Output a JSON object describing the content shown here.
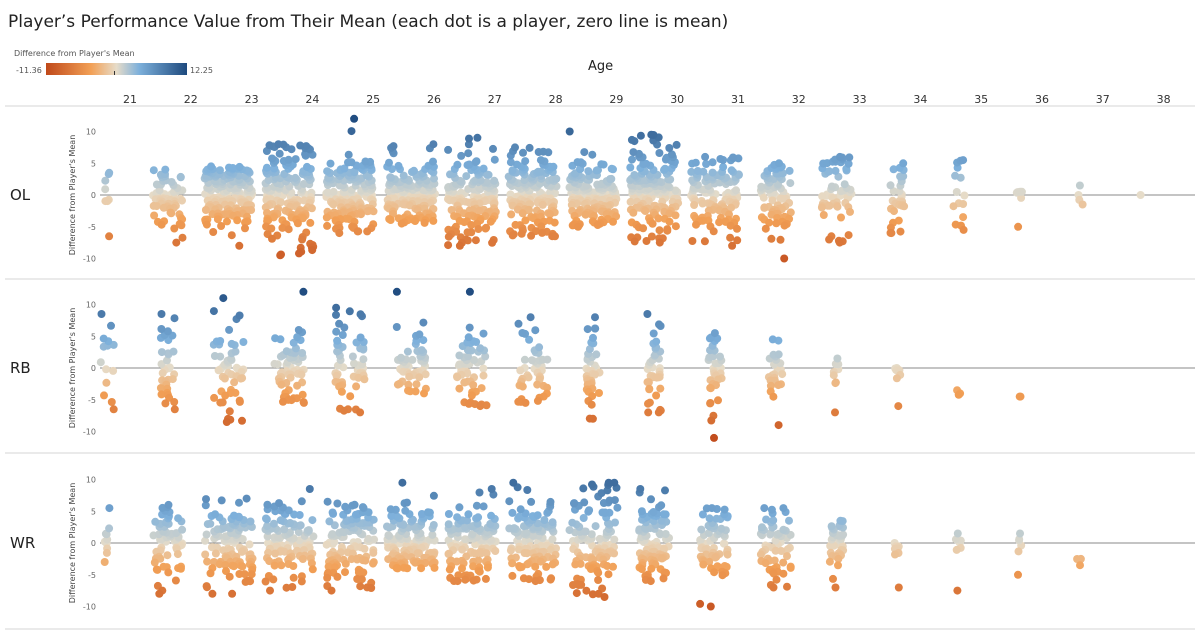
{
  "chart_data": {
    "type": "scatter",
    "title": "Player’s Performance Value from Their Mean (each dot is a player, zero line is mean)",
    "xlabel": "Age",
    "ylabel": "Difference from Player's Mean",
    "x_categories": [
      "21",
      "22",
      "23",
      "24",
      "25",
      "26",
      "27",
      "28",
      "29",
      "30",
      "31",
      "32",
      "33",
      "34",
      "35",
      "36",
      "37",
      "38"
    ],
    "y_ticks": [
      10,
      5,
      0,
      -5,
      -10
    ],
    "ylim": [
      -11.36,
      12.25
    ],
    "color_legend": {
      "title": "Difference from Player's Mean",
      "min_label": "-11.36",
      "max_label": "12.25",
      "min_color": "#c0491a",
      "mid_color": "#e6dcc9",
      "max_color": "#1e4a7e"
    },
    "grid": false,
    "zero_line": true,
    "panels": [
      {
        "position": "OL",
        "groups": [
          {
            "age": "21",
            "n": 8,
            "min": -6.5,
            "max": 3.5
          },
          {
            "age": "22",
            "n": 70,
            "min": -7.5,
            "max": 4
          },
          {
            "age": "23",
            "n": 180,
            "min": -8,
            "max": 4.5
          },
          {
            "age": "24",
            "n": 180,
            "min": -9.5,
            "max": 8
          },
          {
            "age": "25",
            "n": 170,
            "min": -6,
            "max": 12
          },
          {
            "age": "26",
            "n": 170,
            "min": -4.5,
            "max": 8
          },
          {
            "age": "27",
            "n": 170,
            "min": -8,
            "max": 9
          },
          {
            "age": "28",
            "n": 170,
            "min": -6.5,
            "max": 7.5
          },
          {
            "age": "29",
            "n": 170,
            "min": -5,
            "max": 10
          },
          {
            "age": "30",
            "n": 170,
            "min": -7.5,
            "max": 9.5
          },
          {
            "age": "31",
            "n": 130,
            "min": -8,
            "max": 6
          },
          {
            "age": "32",
            "n": 80,
            "min": -10,
            "max": 5
          },
          {
            "age": "33",
            "n": 60,
            "min": -7.5,
            "max": 6
          },
          {
            "age": "34",
            "n": 30,
            "min": -6,
            "max": 5
          },
          {
            "age": "35",
            "n": 15,
            "min": -5.5,
            "max": 5.5
          },
          {
            "age": "36",
            "n": 6,
            "min": -5,
            "max": 0.5
          },
          {
            "age": "37",
            "n": 4,
            "min": -1.5,
            "max": 1.5
          },
          {
            "age": "38",
            "n": 1,
            "min": 0,
            "max": 0
          }
        ]
      },
      {
        "position": "RB",
        "groups": [
          {
            "age": "21",
            "n": 14,
            "min": -6.5,
            "max": 8.5
          },
          {
            "age": "22",
            "n": 35,
            "min": -6.5,
            "max": 8.5
          },
          {
            "age": "23",
            "n": 55,
            "min": -8.5,
            "max": 11
          },
          {
            "age": "24",
            "n": 60,
            "min": -5.5,
            "max": 12
          },
          {
            "age": "25",
            "n": 55,
            "min": -7,
            "max": 9.5
          },
          {
            "age": "26",
            "n": 55,
            "min": -4,
            "max": 12
          },
          {
            "age": "27",
            "n": 55,
            "min": -6,
            "max": 12
          },
          {
            "age": "28",
            "n": 45,
            "min": -5.5,
            "max": 8
          },
          {
            "age": "29",
            "n": 40,
            "min": -8,
            "max": 8
          },
          {
            "age": "30",
            "n": 40,
            "min": -7,
            "max": 8.5
          },
          {
            "age": "31",
            "n": 35,
            "min": -11,
            "max": 5.5
          },
          {
            "age": "32",
            "n": 25,
            "min": -9,
            "max": 4.5
          },
          {
            "age": "33",
            "n": 10,
            "min": -7,
            "max": 1.5
          },
          {
            "age": "34",
            "n": 8,
            "min": -6,
            "max": 0
          },
          {
            "age": "35",
            "n": 3,
            "min": -4,
            "max": -3.5
          },
          {
            "age": "36",
            "n": 2,
            "min": -4.5,
            "max": -4.5
          }
        ]
      },
      {
        "position": "WR",
        "groups": [
          {
            "age": "21",
            "n": 10,
            "min": -3,
            "max": 5.5
          },
          {
            "age": "22",
            "n": 60,
            "min": -8,
            "max": 6
          },
          {
            "age": "23",
            "n": 120,
            "min": -8,
            "max": 7
          },
          {
            "age": "24",
            "n": 120,
            "min": -7.5,
            "max": 8.5
          },
          {
            "age": "25",
            "n": 120,
            "min": -7.5,
            "max": 6.5
          },
          {
            "age": "26",
            "n": 140,
            "min": -4,
            "max": 9.5
          },
          {
            "age": "27",
            "n": 130,
            "min": -6,
            "max": 8.5
          },
          {
            "age": "28",
            "n": 120,
            "min": -6,
            "max": 9.5
          },
          {
            "age": "29",
            "n": 120,
            "min": -8.5,
            "max": 9.5
          },
          {
            "age": "30",
            "n": 100,
            "min": -6,
            "max": 8.5
          },
          {
            "age": "31",
            "n": 70,
            "min": -10,
            "max": 5.5
          },
          {
            "age": "32",
            "n": 60,
            "min": -7,
            "max": 5.5
          },
          {
            "age": "33",
            "n": 40,
            "min": -7,
            "max": 3.5
          },
          {
            "age": "34",
            "n": 10,
            "min": -7,
            "max": 0
          },
          {
            "age": "35",
            "n": 8,
            "min": -7.5,
            "max": 1.5
          },
          {
            "age": "36",
            "n": 6,
            "min": -5,
            "max": 1.5
          },
          {
            "age": "37",
            "n": 3,
            "min": -3.5,
            "max": -2.5
          }
        ]
      }
    ]
  }
}
